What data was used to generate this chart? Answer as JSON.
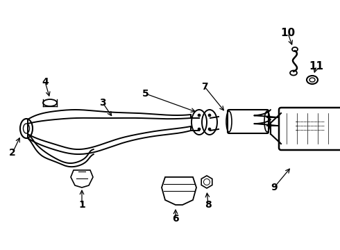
{
  "background_color": "#ffffff",
  "line_color": "#000000",
  "figure_width": 4.9,
  "figure_height": 3.6,
  "dpi": 100,
  "xlim": [
    0,
    490
  ],
  "ylim": [
    0,
    360
  ]
}
